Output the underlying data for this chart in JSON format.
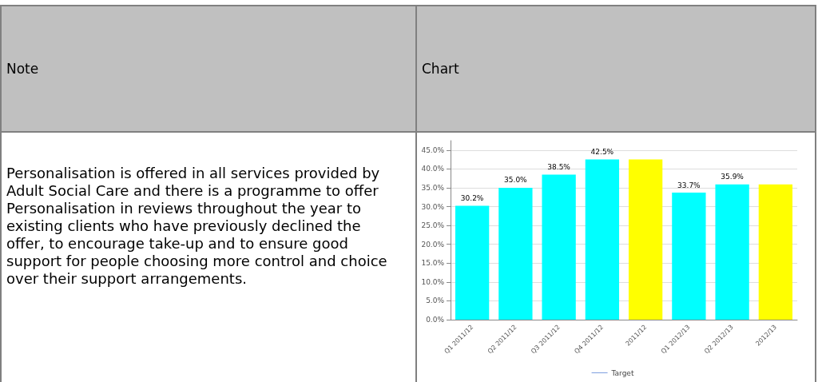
{
  "chart_data": {
    "type": "bar",
    "annotations": [
      "Note",
      "Chart",
      "Personalisation is offered in all services provided by Adult Social Care and there is a programme to offer Personalisation in reviews throughout the year to existing clients who have previously declined the offer, to encourage take-up and to ensure good support for people choosing more control and choice over their support arrangements."
    ],
    "categories": [
      "Q1 2011/12",
      "Q2 2011/12",
      "Q3 2011/12",
      "Q4 2011/12",
      "2011/12",
      "Q1 2012/13",
      "Q2 2012/13",
      "2012/13"
    ],
    "series": [
      {
        "values": [
          30.2,
          35.0,
          38.5,
          42.5,
          42.5,
          33.7,
          35.9,
          35.9
        ],
        "colors": [
          "#00ffff",
          "#00ffff",
          "#00ffff",
          "#00ffff",
          "#ffff00",
          "#00ffff",
          "#00ffff",
          "#ffff00"
        ],
        "value_labels": [
          "30.2%",
          "35.0%",
          "38.5%",
          "42.5%",
          null,
          "33.7%",
          "35.9%",
          null
        ]
      },
      {
        "type": "line",
        "name": "Target",
        "color": "#7f9fe0",
        "values": [
          null,
          null,
          null,
          null,
          null,
          null,
          null,
          null
        ]
      }
    ],
    "ylim": [
      0,
      47.5
    ],
    "yticks": [
      {
        "value": 0,
        "label": "0.0%"
      },
      {
        "value": 5,
        "label": "5.0%"
      },
      {
        "value": 10,
        "label": "10.0%"
      },
      {
        "value": 15,
        "label": "15.0%"
      },
      {
        "value": 20,
        "label": "20.0%"
      },
      {
        "value": 25,
        "label": "25.0%"
      },
      {
        "value": 30,
        "label": "30.0%"
      },
      {
        "value": 35,
        "label": "35.0%"
      },
      {
        "value": 40,
        "label": "40.0%"
      },
      {
        "value": 45,
        "label": "45.0%"
      }
    ],
    "grid": "y",
    "legend": "bottom"
  }
}
